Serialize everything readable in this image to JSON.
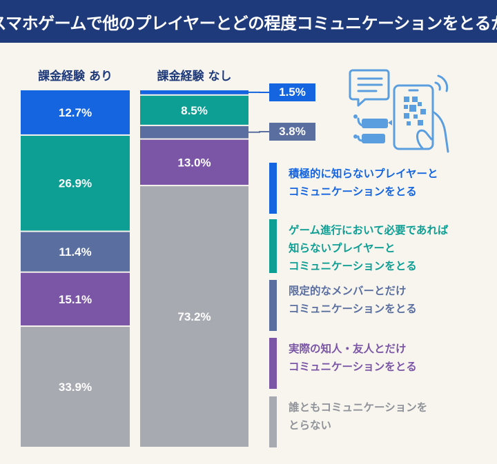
{
  "title": "スマホゲームで他のプレイヤーとどの程度コミュニケーションをとるか",
  "colors": {
    "title_bg": "#1f3a7a",
    "background": "#f7f5ee",
    "icon": "#5b9ee0"
  },
  "chart_data": {
    "type": "bar",
    "stacked": true,
    "normalized_to": 100,
    "categories": [
      "課金経験 あり",
      "課金経験 なし"
    ],
    "series": [
      {
        "name": "積極的に知らないプレイヤーとコミュニケーションをとる",
        "color": "#1565e0",
        "values": [
          12.7,
          1.5
        ],
        "labels": [
          "12.7%",
          "1.5%"
        ]
      },
      {
        "name": "ゲーム進行において必要であれば知らないプレイヤーとコミュニケーションをとる",
        "color": "#0d9e94",
        "values": [
          26.9,
          8.5
        ],
        "labels": [
          "26.9%",
          "8.5%"
        ]
      },
      {
        "name": "限定的なメンバーとだけコミュニケーションをとる",
        "color": "#5a6ea0",
        "values": [
          11.4,
          3.8
        ],
        "labels": [
          "11.4%",
          "3.8%"
        ]
      },
      {
        "name": "実際の知人・友人とだけコミュニケーションをとる",
        "color": "#7b55a6",
        "values": [
          15.1,
          13.0
        ],
        "labels": [
          "15.1%",
          "13.0%"
        ]
      },
      {
        "name": "誰ともコミュニケーションをとらない",
        "color": "#a8aab1",
        "values": [
          33.9,
          73.2
        ],
        "labels": [
          "33.9%",
          "73.2%"
        ]
      }
    ]
  },
  "legend": [
    {
      "lines": [
        "積極的に知らないプレイヤーと",
        "コミュニケーションをとる"
      ],
      "color": "#1565e0"
    },
    {
      "lines": [
        "ゲーム進行において必要であれば",
        "知らないプレイヤーと",
        "コミュニケーションをとる"
      ],
      "color": "#0d9e94"
    },
    {
      "lines": [
        "限定的なメンバーとだけ",
        "コミュニケーションをとる"
      ],
      "color": "#5a6ea0"
    },
    {
      "lines": [
        "実際の知人・友人とだけ",
        "コミュニケーションをとる"
      ],
      "color": "#7b55a6"
    },
    {
      "lines": [
        "誰ともコミュニケーションを",
        "とらない"
      ],
      "color": "#a8aab1"
    }
  ],
  "illustration": {
    "icon": "smartphone-chat-qr-icon"
  }
}
